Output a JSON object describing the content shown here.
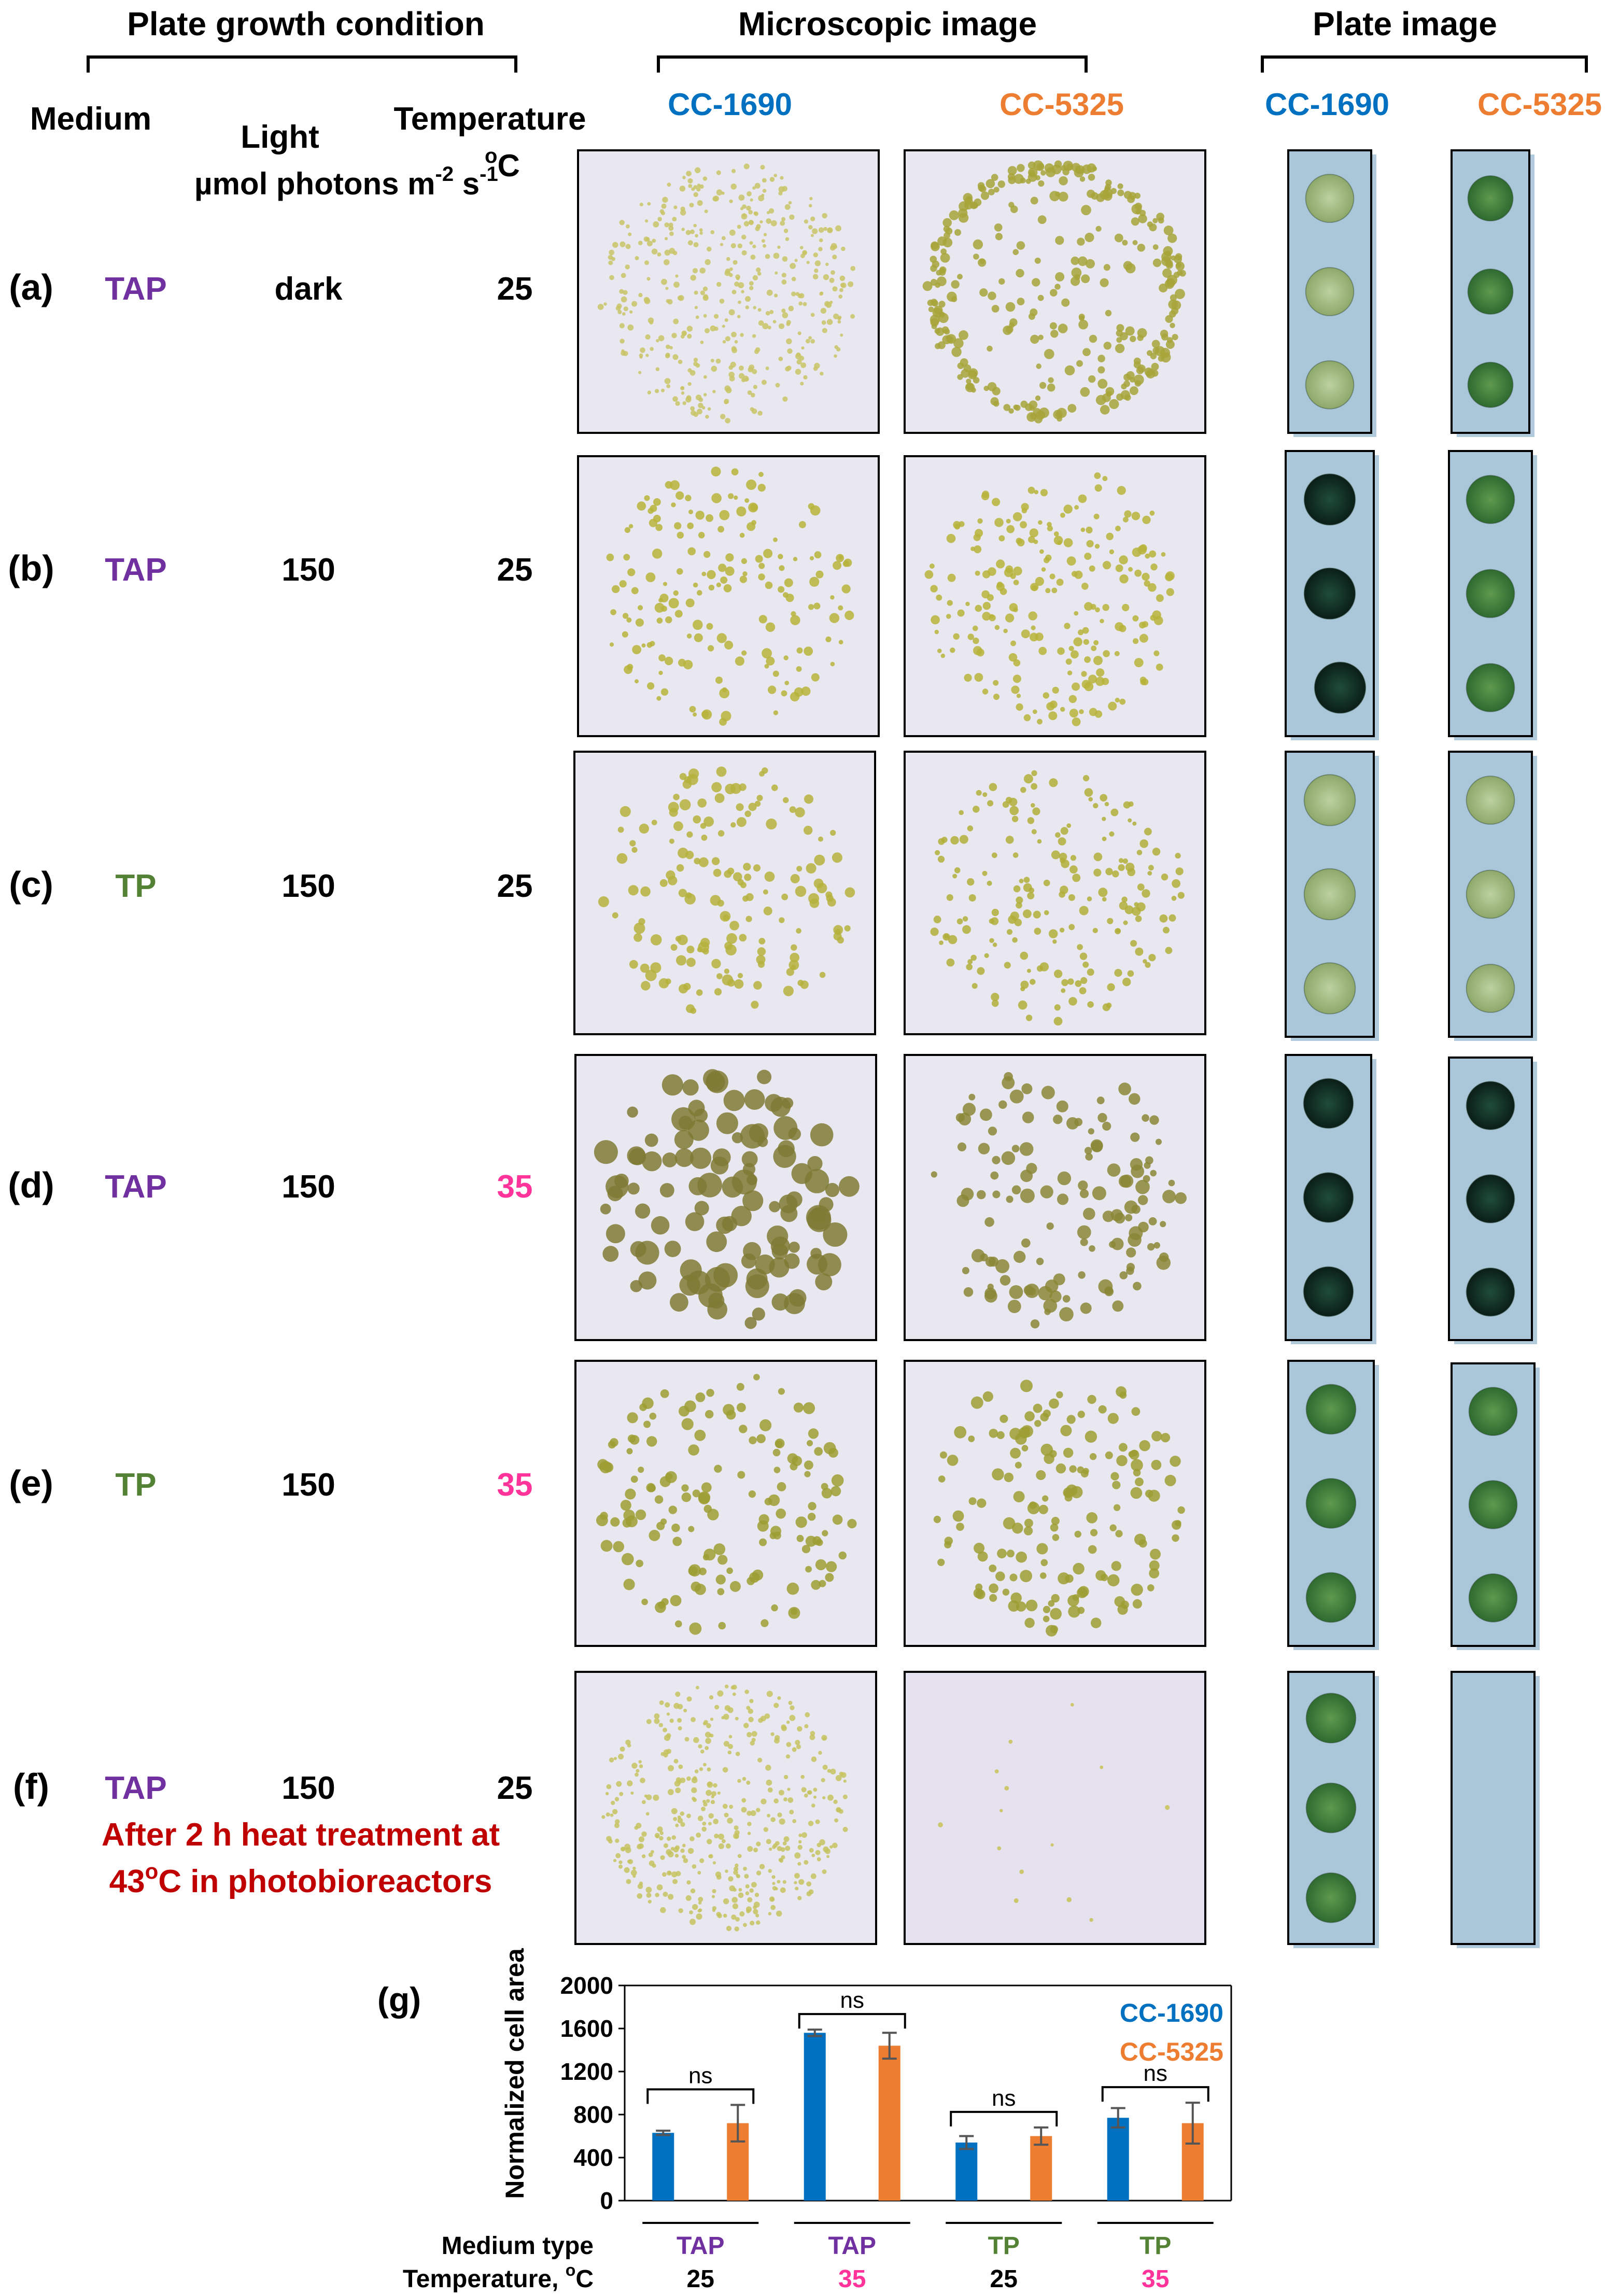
{
  "headers": {
    "plate_growth": "Plate growth condition",
    "microscopic": "Microscopic  image",
    "plate_image": "Plate  image"
  },
  "columns": {
    "medium": "Medium",
    "light_line1": "Light",
    "light_line2": "µmol photons m",
    "light_sup1": "-2",
    "light_mid": " s",
    "light_sup2": "-1",
    "temp_line1": "Temperature",
    "temp_sup": "o",
    "temp_unit": "C"
  },
  "strains": {
    "s1": "CC-1690",
    "s2": "CC-5325"
  },
  "rows": [
    {
      "label": "(a)",
      "medium": "TAP",
      "light": "dark",
      "temp": "25"
    },
    {
      "label": "(b)",
      "medium": "TAP",
      "light": "150",
      "temp": "25"
    },
    {
      "label": "(c)",
      "medium": "TP",
      "light": "150",
      "temp": "25"
    },
    {
      "label": "(d)",
      "medium": "TAP",
      "light": "150",
      "temp": "35"
    },
    {
      "label": "(e)",
      "medium": "TP",
      "light": "150",
      "temp": "35"
    },
    {
      "label": "(f)",
      "medium": "TAP",
      "light": "150",
      "temp": "25"
    }
  ],
  "note": {
    "line1": "After 2 h heat treatment at",
    "line2_pre": "43",
    "line2_sup": "o",
    "line2_post": "C in photobioreactors"
  },
  "colors": {
    "tap": "#7030a0",
    "tp": "#548235",
    "temp35": "#ff3399",
    "cc1690": "#0070c0",
    "cc5325": "#ed7d31",
    "note": "#c00000",
    "plate_bg": "#a9c7d9",
    "micro_bg": "#e9e7ef",
    "colony": "#b3b33a"
  },
  "chart_data": {
    "type": "bar",
    "panel_label": "(g)",
    "ylabel": "Normalized cell area",
    "ylim": [
      0,
      2000
    ],
    "yticks": [
      "0",
      "400",
      "800",
      "1200",
      "1600",
      "2000"
    ],
    "groups": [
      {
        "medium": "TAP",
        "temp": "25",
        "sig": "ns"
      },
      {
        "medium": "TAP",
        "temp": "35",
        "sig": "ns"
      },
      {
        "medium": "TP",
        "temp": "25",
        "sig": "ns"
      },
      {
        "medium": "TP",
        "temp": "35",
        "sig": "ns"
      }
    ],
    "series": [
      {
        "name": "CC-1690",
        "values": [
          630,
          1560,
          540,
          770
        ],
        "errors": [
          20,
          30,
          60,
          90
        ]
      },
      {
        "name": "CC-5325",
        "values": [
          720,
          1440,
          600,
          720
        ],
        "errors": [
          170,
          120,
          80,
          190
        ]
      }
    ],
    "xrow_labels": {
      "medium": "Medium type",
      "temp_pre": "Temperature, ",
      "temp_sup": "o",
      "temp_post": "C"
    },
    "legend_position": "top-right"
  }
}
